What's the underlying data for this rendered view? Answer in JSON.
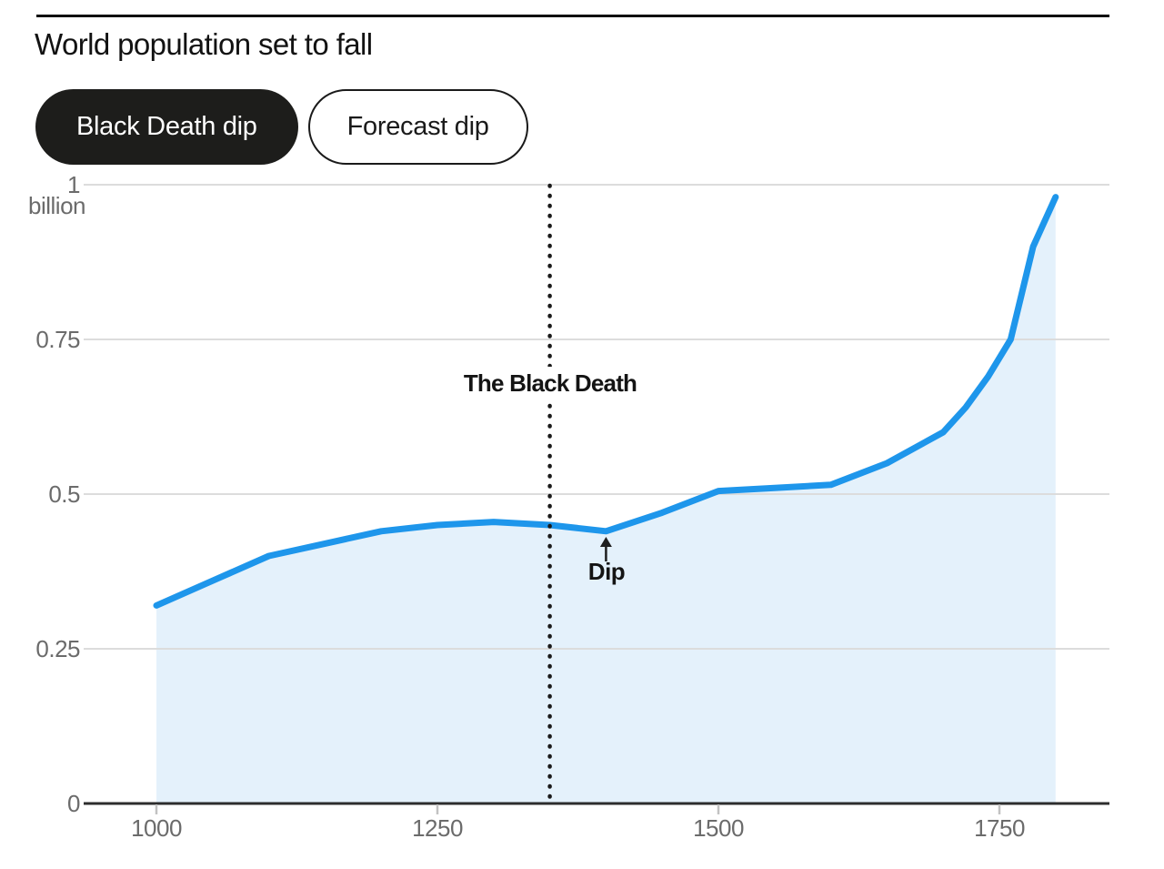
{
  "header": {
    "title": "World population set to fall"
  },
  "toggles": [
    {
      "label": "Black Death dip",
      "active": true
    },
    {
      "label": "Forecast dip",
      "active": false
    }
  ],
  "chart_data": {
    "type": "area",
    "title": "World population set to fall",
    "ylabel_unit": "billion",
    "x": [
      1000,
      1050,
      1100,
      1150,
      1200,
      1250,
      1300,
      1350,
      1400,
      1450,
      1500,
      1550,
      1600,
      1650,
      1700,
      1720,
      1740,
      1760,
      1780,
      1790,
      1800
    ],
    "series": [
      {
        "name": "World population (billions)",
        "values": [
          0.32,
          0.36,
          0.4,
          0.42,
          0.44,
          0.45,
          0.455,
          0.45,
          0.44,
          0.47,
          0.505,
          0.51,
          0.515,
          0.55,
          0.6,
          0.64,
          0.69,
          0.75,
          0.9,
          0.94,
          0.98
        ]
      }
    ],
    "xlim": [
      1000,
      1800
    ],
    "ylim": [
      0,
      1
    ],
    "grid": true,
    "yticks": [
      {
        "value": 1,
        "label": "1"
      },
      {
        "value": 0.75,
        "label": "0.75"
      },
      {
        "value": 0.5,
        "label": "0.5"
      },
      {
        "value": 0.25,
        "label": "0.25"
      },
      {
        "value": 0,
        "label": "0"
      }
    ],
    "xticks": [
      {
        "value": 1000,
        "label": "1000"
      },
      {
        "value": 1250,
        "label": "1250"
      },
      {
        "value": 1500,
        "label": "1500"
      },
      {
        "value": 1750,
        "label": "1750"
      }
    ],
    "annotations": {
      "vline": {
        "x": 1350,
        "label": "The Black Death",
        "style": "dotted"
      },
      "dip": {
        "x": 1400,
        "label": "Dip"
      }
    },
    "colors": {
      "line": "#1e96eb",
      "fill": "#e4f1fb",
      "grid": "#dcdcdc",
      "axis": "#2d2d2d",
      "tick": "#c2c2c2",
      "annotation": "#1a1a1a",
      "muted_text": "#6b6b6b"
    }
  }
}
